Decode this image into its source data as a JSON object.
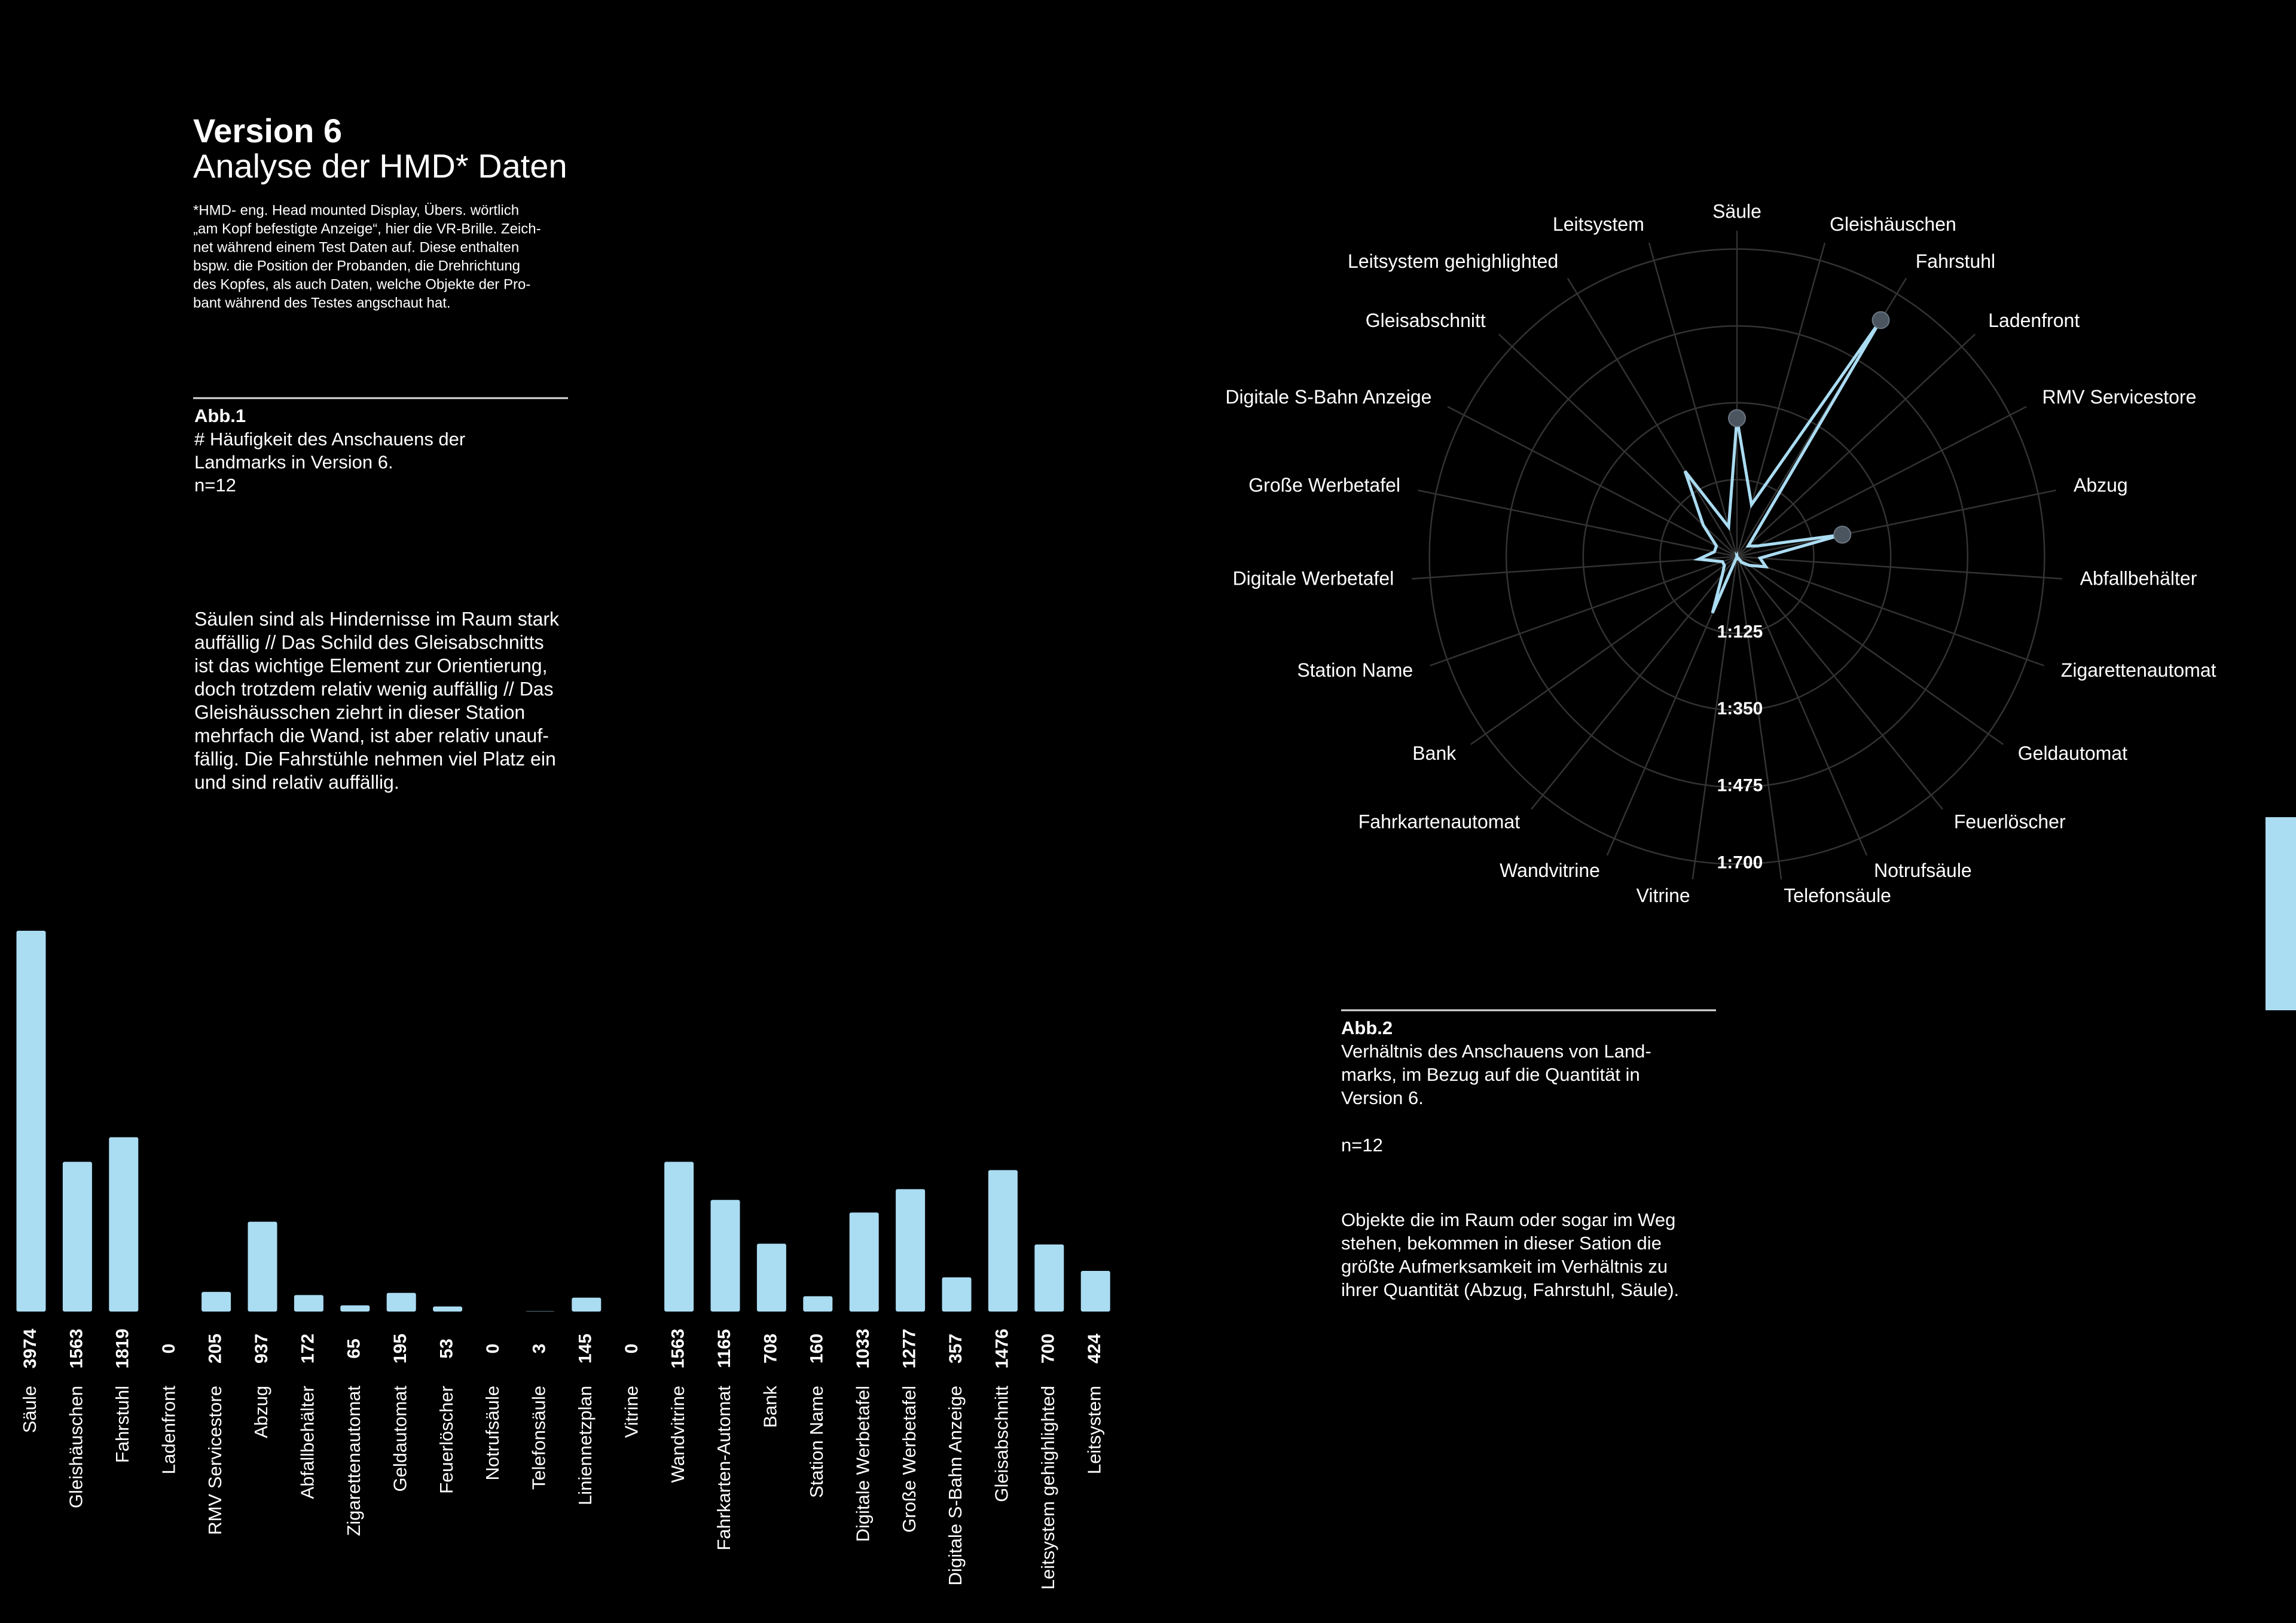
{
  "header": {
    "title": "Version 6",
    "subtitle": "Analyse der HMD* Daten",
    "footnote": [
      "*HMD- eng. Head mounted Display, Übers. wörtlich",
      "„am Kopf befestigte Anzeige“, hier die VR-Brille. Zeich-",
      "net während einem Test Daten auf. Diese enthalten",
      "bspw. die Position der Probanden, die Drehrichtung",
      "des Kopfes, als auch Daten, welche Objekte der Pro-",
      "bant während des Testes angschaut hat."
    ]
  },
  "figure1": {
    "label": "Abb.1",
    "caption": [
      "# Häufigkeit des Anschauens der",
      "Landmarks in Version 6.",
      "n=12"
    ],
    "text": [
      "Säulen sind als Hindernisse im Raum stark",
      "auffällig // Das Schild des Gleisabschnitts",
      "ist das wichtige Element zur Orientierung,",
      "doch trotzdem relativ wenig auffällig // Das",
      "Gleishäusschen ziehrt in dieser Station",
      "mehrfach die Wand, ist aber relativ unauf-",
      "fällig. Die Fahrstühle nehmen viel Platz ein",
      "und sind relativ auffällig."
    ]
  },
  "figure2": {
    "label": "Abb.2",
    "caption": [
      "Verhältnis des Anschauens von Land-",
      "marks, im Bezug auf die Quantität in",
      "Version 6."
    ],
    "sample": "n=12",
    "text": [
      "Objekte die im Raum oder sogar im Weg",
      "stehen, bekommen in dieser Sation die",
      "größte Aufmerksamkeit im Verhältnis zu",
      "ihrer Quantität (Abzug, Fahrstuhl, Säule)."
    ]
  },
  "chart_data": [
    {
      "type": "bar",
      "color": "#aadcf2",
      "categories": [
        "Säule",
        "Gleishäuschen",
        "Fahrstuhl",
        "Ladenfront",
        "RMV Servicestore",
        "Abzug",
        "Abfallbehälter",
        "Zigarettenautomat",
        "Geldautomat",
        "Feuerlöscher",
        "Notrufsäule",
        "Telefonsäule",
        "Liniennetzplan",
        "Vitrine",
        "Wandvitrine",
        "Fahrkarten-Automat",
        "Bank",
        "Station Name",
        "Digitale Werbetafel",
        "Große Werbetafel",
        "Digitale S-Bahn Anzeige",
        "Gleisabschnitt",
        "Leitsystem gehighlighted",
        "Leitsystem"
      ],
      "values": [
        3974,
        1563,
        1819,
        0,
        205,
        937,
        172,
        65,
        195,
        53,
        0,
        3,
        145,
        0,
        1563,
        1165,
        708,
        160,
        1033,
        1277,
        357,
        1476,
        700,
        424
      ]
    },
    {
      "type": "radar",
      "color": "#aadcf2",
      "categories": [
        "Säule",
        "Gleishäuschen",
        "Fahrstuhl",
        "Ladenfront",
        "RMV Servicestore",
        "Abzug",
        "Abfallbehälter",
        "Zigarettenautomat",
        "Geldautomat",
        "Feuerlöscher",
        "Notrufsäule",
        "Telefonsäule",
        "Vitrine",
        "Wandvitrine",
        "Fahrkartenautomat",
        "Bank",
        "Station Name",
        "Digitale Werbetafel",
        "Große Werbetafel",
        "Digitale S-Bahn Anzeige",
        "Gleisabschnitt",
        "Leitsystem gehighlighted",
        "Leitsystem"
      ],
      "values": [
        1.8,
        0.7,
        3.6,
        0.2,
        0.3,
        1.4,
        0.3,
        0.4,
        0.2,
        0.1,
        0,
        0.05,
        0,
        0.8,
        0.3,
        0.2,
        0.2,
        0.5,
        0.3,
        0.3,
        0.6,
        1.3,
        0.4
      ],
      "rlim": [
        0,
        4
      ],
      "ring_labels": [
        "1:125",
        "1:350",
        "1:475",
        "1:700"
      ]
    }
  ]
}
